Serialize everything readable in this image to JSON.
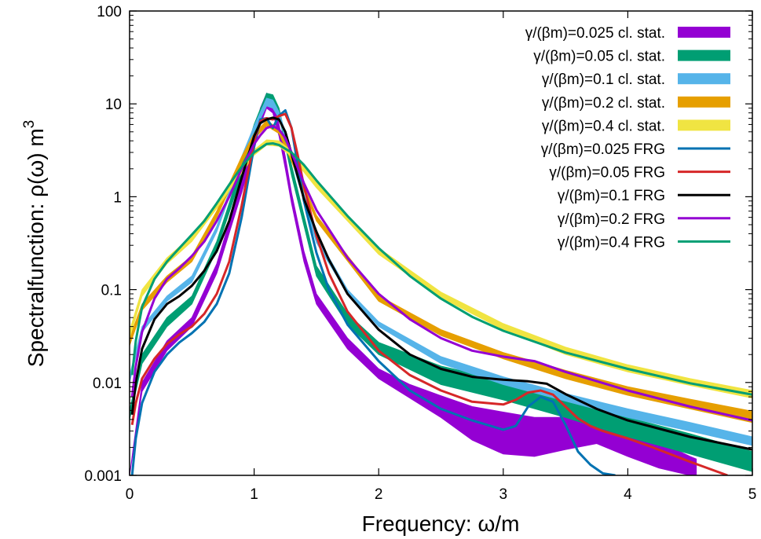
{
  "chart_data": {
    "type": "line",
    "title": "",
    "xlabel": "Frequency: ω/m",
    "ylabel": "Spectralfunction: ρ(ω) m",
    "ylabel_sup": "3",
    "xlim": [
      0,
      5
    ],
    "ylim": [
      0.001,
      100
    ],
    "yscale": "log",
    "grid": false,
    "legend_position": "top-right",
    "x_ticks": [
      "0",
      "1",
      "2",
      "3",
      "4",
      "5"
    ],
    "y_ticks": [
      "0.001",
      "0.01",
      "0.1",
      "1",
      "10",
      "100"
    ],
    "series": [
      {
        "name": "γ/(βm)=0.025 cl. stat.",
        "kind": "band",
        "color": "#9400d3",
        "x": [
          0.0,
          0.1,
          0.3,
          0.5,
          0.7,
          0.9,
          1.0,
          1.05,
          1.1,
          1.15,
          1.2,
          1.25,
          1.3,
          1.4,
          1.5,
          1.75,
          2.0,
          2.25,
          2.5,
          2.75,
          3.0,
          3.25,
          3.5,
          3.75,
          4.0,
          4.25,
          4.5,
          4.55
        ],
        "lower": [
          0.001,
          0.008,
          0.022,
          0.04,
          0.15,
          1.1,
          3.2,
          6.0,
          9.0,
          8.0,
          4.5,
          2.0,
          0.85,
          0.2,
          0.07,
          0.023,
          0.011,
          0.0068,
          0.0042,
          0.0024,
          0.0017,
          0.0016,
          0.0019,
          0.0022,
          0.0016,
          0.0012,
          0.001,
          0.001
        ],
        "upper": [
          0.001,
          0.01,
          0.028,
          0.05,
          0.19,
          1.5,
          4.5,
          9.0,
          13.0,
          11.0,
          6.0,
          2.7,
          1.1,
          0.26,
          0.09,
          0.03,
          0.014,
          0.0095,
          0.0072,
          0.0055,
          0.0048,
          0.0042,
          0.0042,
          0.0041,
          0.003,
          0.0023,
          0.0016,
          0.0015
        ]
      },
      {
        "name": "γ/(βm)=0.05 cl. stat.",
        "kind": "band",
        "color": "#009e73",
        "x": [
          0.0,
          0.1,
          0.3,
          0.5,
          0.7,
          0.9,
          1.0,
          1.1,
          1.15,
          1.2,
          1.3,
          1.5,
          1.75,
          2.0,
          2.5,
          3.0,
          3.5,
          4.0,
          4.5,
          5.0
        ],
        "lower": [
          0.004,
          0.016,
          0.04,
          0.07,
          0.27,
          1.7,
          4.5,
          11.0,
          10.5,
          7.5,
          1.7,
          0.14,
          0.042,
          0.02,
          0.0095,
          0.0065,
          0.0042,
          0.0026,
          0.0017,
          0.0011
        ],
        "upper": [
          0.005,
          0.02,
          0.05,
          0.085,
          0.33,
          2.2,
          6.0,
          13.0,
          12.5,
          9.0,
          2.2,
          0.18,
          0.055,
          0.027,
          0.015,
          0.0105,
          0.0068,
          0.0042,
          0.0028,
          0.0018
        ]
      },
      {
        "name": "γ/(βm)=0.1 cl. stat.",
        "kind": "band",
        "color": "#56b4e9",
        "x": [
          0.0,
          0.1,
          0.3,
          0.5,
          0.7,
          0.9,
          1.0,
          1.1,
          1.15,
          1.2,
          1.3,
          1.5,
          1.75,
          2.0,
          2.5,
          3.0,
          3.5,
          4.0,
          4.5,
          5.0
        ],
        "lower": [
          0.01,
          0.035,
          0.075,
          0.12,
          0.42,
          2.3,
          5.0,
          9.5,
          9.0,
          7.0,
          2.5,
          0.32,
          0.09,
          0.04,
          0.016,
          0.0095,
          0.0063,
          0.0042,
          0.003,
          0.0021
        ],
        "upper": [
          0.012,
          0.04,
          0.085,
          0.14,
          0.48,
          2.7,
          5.8,
          11.5,
          11.0,
          8.2,
          3.0,
          0.38,
          0.1,
          0.045,
          0.019,
          0.0115,
          0.0076,
          0.0052,
          0.0037,
          0.0026
        ]
      },
      {
        "name": "γ/(βm)=0.2 cl. stat.",
        "kind": "band",
        "color": "#e69f00",
        "x": [
          0.0,
          0.1,
          0.3,
          0.5,
          0.7,
          0.9,
          1.0,
          1.1,
          1.2,
          1.3,
          1.5,
          2.0,
          2.5,
          3.0,
          3.5,
          4.0,
          4.5,
          5.0
        ],
        "lower": [
          0.025,
          0.06,
          0.12,
          0.2,
          0.6,
          2.3,
          4.2,
          5.8,
          4.8,
          2.4,
          0.55,
          0.075,
          0.032,
          0.018,
          0.011,
          0.0073,
          0.0052,
          0.0037
        ],
        "upper": [
          0.03,
          0.07,
          0.14,
          0.23,
          0.7,
          2.7,
          4.8,
          6.6,
          5.4,
          2.7,
          0.63,
          0.086,
          0.037,
          0.021,
          0.0135,
          0.009,
          0.0066,
          0.0049
        ]
      },
      {
        "name": "γ/(βm)=0.4 cl. stat.",
        "kind": "band",
        "color": "#f0e442",
        "x": [
          0.0,
          0.1,
          0.3,
          0.5,
          0.7,
          0.9,
          1.0,
          1.1,
          1.2,
          1.3,
          1.5,
          2.0,
          2.5,
          3.0,
          3.5,
          4.0,
          4.5,
          5.0
        ],
        "lower": [
          0.03,
          0.085,
          0.19,
          0.33,
          0.75,
          1.8,
          2.8,
          3.6,
          3.5,
          2.7,
          1.25,
          0.24,
          0.082,
          0.037,
          0.02,
          0.013,
          0.0093,
          0.0068
        ],
        "upper": [
          0.036,
          0.1,
          0.22,
          0.38,
          0.86,
          2.05,
          3.2,
          4.1,
          4.0,
          3.1,
          1.45,
          0.28,
          0.094,
          0.043,
          0.024,
          0.0155,
          0.011,
          0.0082
        ]
      },
      {
        "name": "γ/(βm)=0.025 FRG",
        "kind": "line",
        "color": "#0072b2",
        "x": [
          0.02,
          0.05,
          0.1,
          0.2,
          0.3,
          0.4,
          0.5,
          0.6,
          0.7,
          0.8,
          0.9,
          1.0,
          1.05,
          1.1,
          1.15,
          1.2,
          1.25,
          1.3,
          1.35,
          1.4,
          1.5,
          1.6,
          1.75,
          2.0,
          2.25,
          2.5,
          2.75,
          3.0,
          3.1,
          3.2,
          3.3,
          3.4,
          3.5,
          3.6,
          3.7,
          3.8,
          3.9
        ],
        "y": [
          0.001,
          0.0025,
          0.006,
          0.013,
          0.02,
          0.027,
          0.034,
          0.045,
          0.07,
          0.15,
          0.6,
          3.5,
          6.8,
          7.0,
          5.5,
          7.5,
          8.5,
          5.5,
          2.2,
          0.9,
          0.25,
          0.1,
          0.042,
          0.017,
          0.0082,
          0.0052,
          0.0039,
          0.0031,
          0.0034,
          0.0055,
          0.007,
          0.0062,
          0.0035,
          0.0018,
          0.0013,
          0.00105,
          0.001
        ]
      },
      {
        "name": "γ/(βm)=0.05 FRG",
        "kind": "line",
        "color": "#d62728",
        "x": [
          0.02,
          0.05,
          0.1,
          0.2,
          0.3,
          0.4,
          0.5,
          0.6,
          0.7,
          0.8,
          0.9,
          1.0,
          1.05,
          1.1,
          1.15,
          1.2,
          1.25,
          1.3,
          1.35,
          1.4,
          1.5,
          1.6,
          1.75,
          2.0,
          2.25,
          2.5,
          2.75,
          3.0,
          3.1,
          3.2,
          3.3,
          3.4,
          3.5,
          3.6,
          3.7,
          3.8,
          4.0,
          4.2,
          4.5,
          4.8
        ],
        "y": [
          0.0035,
          0.006,
          0.011,
          0.018,
          0.026,
          0.033,
          0.04,
          0.055,
          0.09,
          0.2,
          0.8,
          4.0,
          6.5,
          7.0,
          6.8,
          7.4,
          7.8,
          5.5,
          2.8,
          1.3,
          0.38,
          0.15,
          0.058,
          0.022,
          0.012,
          0.0082,
          0.0062,
          0.0058,
          0.0065,
          0.0078,
          0.0082,
          0.0074,
          0.0055,
          0.0041,
          0.0034,
          0.003,
          0.0025,
          0.002,
          0.0014,
          0.001
        ]
      },
      {
        "name": "γ/(βm)=0.1 FRG",
        "kind": "line",
        "color": "#000000",
        "x": [
          0.02,
          0.05,
          0.1,
          0.2,
          0.3,
          0.4,
          0.5,
          0.6,
          0.7,
          0.8,
          0.9,
          1.0,
          1.05,
          1.1,
          1.15,
          1.2,
          1.25,
          1.3,
          1.4,
          1.5,
          1.6,
          1.75,
          2.0,
          2.25,
          2.5,
          2.75,
          3.0,
          3.2,
          3.35,
          3.5,
          3.75,
          4.0,
          4.5,
          5.0
        ],
        "y": [
          0.0045,
          0.01,
          0.023,
          0.048,
          0.07,
          0.085,
          0.11,
          0.16,
          0.26,
          0.55,
          1.6,
          4.5,
          6.2,
          6.8,
          7.1,
          6.8,
          5.0,
          2.9,
          0.95,
          0.42,
          0.21,
          0.09,
          0.037,
          0.02,
          0.014,
          0.0115,
          0.0107,
          0.0103,
          0.0097,
          0.0075,
          0.0052,
          0.0039,
          0.0026,
          0.0019
        ]
      },
      {
        "name": "γ/(βm)=0.2 FRG",
        "kind": "line",
        "color": "#9400d3",
        "x": [
          0.02,
          0.05,
          0.1,
          0.2,
          0.3,
          0.4,
          0.5,
          0.6,
          0.7,
          0.8,
          0.9,
          1.0,
          1.05,
          1.1,
          1.15,
          1.2,
          1.25,
          1.3,
          1.4,
          1.5,
          1.75,
          2.0,
          2.25,
          2.5,
          2.75,
          3.0,
          3.25,
          3.5,
          4.0,
          4.5,
          5.0
        ],
        "y": [
          0.007,
          0.015,
          0.035,
          0.08,
          0.13,
          0.17,
          0.23,
          0.33,
          0.55,
          1.0,
          2.0,
          3.7,
          4.6,
          5.5,
          5.8,
          5.3,
          4.3,
          3.0,
          1.4,
          0.72,
          0.22,
          0.09,
          0.048,
          0.03,
          0.022,
          0.019,
          0.017,
          0.013,
          0.0082,
          0.0055,
          0.0039
        ]
      },
      {
        "name": "γ/(βm)=0.4 FRG",
        "kind": "line",
        "color": "#009e73",
        "x": [
          0.02,
          0.05,
          0.1,
          0.2,
          0.3,
          0.4,
          0.5,
          0.6,
          0.7,
          0.8,
          0.9,
          1.0,
          1.1,
          1.15,
          1.2,
          1.3,
          1.4,
          1.5,
          1.75,
          2.0,
          2.25,
          2.5,
          2.75,
          3.0,
          3.5,
          4.0,
          4.5,
          5.0
        ],
        "y": [
          0.012,
          0.028,
          0.065,
          0.13,
          0.2,
          0.28,
          0.39,
          0.55,
          0.85,
          1.35,
          2.1,
          3.0,
          3.7,
          3.75,
          3.6,
          3.0,
          2.2,
          1.5,
          0.62,
          0.28,
          0.14,
          0.08,
          0.051,
          0.036,
          0.021,
          0.014,
          0.0098,
          0.0074
        ]
      }
    ]
  }
}
